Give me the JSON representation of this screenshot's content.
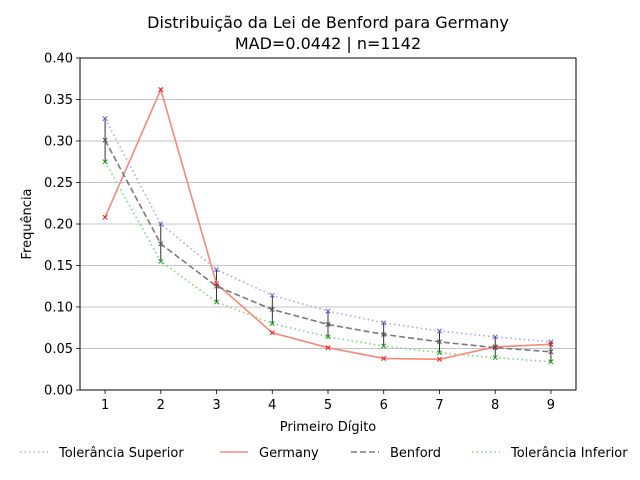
{
  "chart_data": {
    "type": "line",
    "title": "Distribuição da Lei de Benford para Germany",
    "subtitle": "MAD=0.0442 | n=1142",
    "xlabel": "Primeiro Dígito",
    "ylabel": "Frequência",
    "x": [
      1,
      2,
      3,
      4,
      5,
      6,
      7,
      8,
      9
    ],
    "xlim": [
      0.55,
      9.45
    ],
    "ylim": [
      0.0,
      0.4
    ],
    "yticks": [
      "0.00",
      "0.05",
      "0.10",
      "0.15",
      "0.20",
      "0.25",
      "0.30",
      "0.35",
      "0.40"
    ],
    "xticks": [
      "1",
      "2",
      "3",
      "4",
      "5",
      "6",
      "7",
      "8",
      "9"
    ],
    "grid": "horizontal",
    "legend_placement": "bottom",
    "series": [
      {
        "name": "Tolerância Superior",
        "color": "#a9a6f5",
        "marker_color": "#6a5acd",
        "style": "dotted",
        "values": [
          0.327,
          0.2,
          0.145,
          0.114,
          0.095,
          0.081,
          0.071,
          0.064,
          0.058
        ]
      },
      {
        "name": "Germany",
        "color": "#f8887a",
        "marker_color": "#e8201a",
        "style": "solid",
        "values": [
          0.208,
          0.362,
          0.128,
          0.069,
          0.051,
          0.038,
          0.037,
          0.052,
          0.055
        ]
      },
      {
        "name": "Benford",
        "color": "#7a7a7a",
        "marker_color": "#555555",
        "style": "dashed",
        "values": [
          0.301,
          0.176,
          0.125,
          0.097,
          0.079,
          0.067,
          0.058,
          0.051,
          0.046
        ]
      },
      {
        "name": "Tolerância Inferior",
        "color": "#7bd67b",
        "marker_color": "#1a9a1a",
        "style": "dotted",
        "values": [
          0.275,
          0.155,
          0.106,
          0.08,
          0.064,
          0.053,
          0.045,
          0.039,
          0.034
        ]
      }
    ]
  }
}
